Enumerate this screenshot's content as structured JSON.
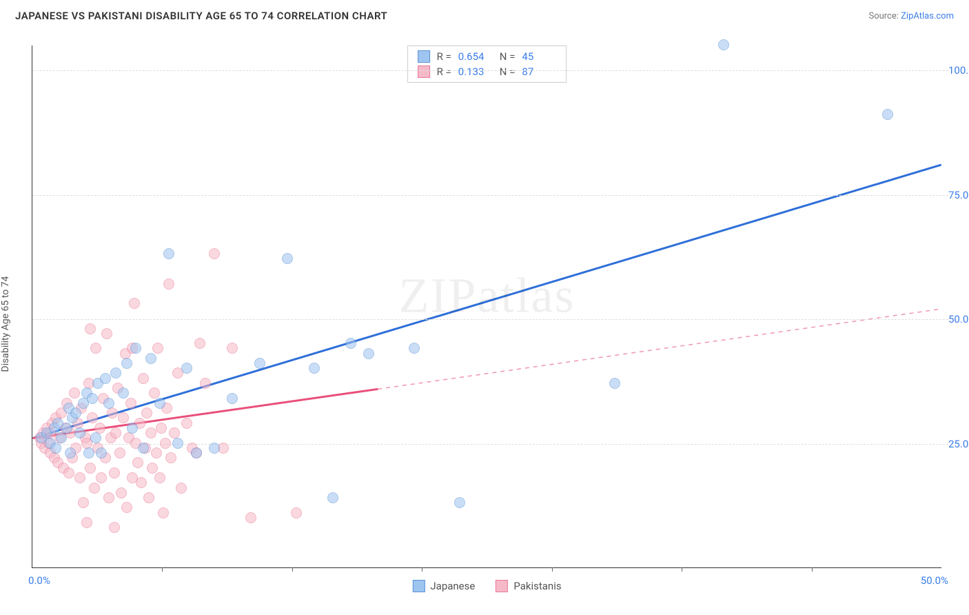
{
  "header": {
    "title": "JAPANESE VS PAKISTANI DISABILITY AGE 65 TO 74 CORRELATION CHART",
    "source_prefix": "Source: ",
    "source_link": "ZipAtlas.com"
  },
  "chart": {
    "type": "scatter",
    "ylabel": "Disability Age 65 to 74",
    "xlim": [
      0,
      50
    ],
    "ylim": [
      0,
      105
    ],
    "x_ticks": [
      0,
      50
    ],
    "x_tick_labels": [
      "0.0%",
      "50.0%"
    ],
    "x_minor_ticks": [
      7.14,
      14.28,
      21.42,
      28.56,
      35.7,
      42.84
    ],
    "y_ticks": [
      25,
      50,
      75,
      100
    ],
    "y_tick_labels": [
      "25.0%",
      "50.0%",
      "75.0%",
      "100.0%"
    ],
    "grid_color": "#dddddd",
    "axis_color": "#333333",
    "background_color": "#ffffff",
    "point_radius": 8,
    "point_opacity": 0.55,
    "watermark": "ZIPatlas",
    "series": [
      {
        "name": "Japanese",
        "fill_color": "#9ec4f0",
        "stroke_color": "#5b93d6",
        "line_color": "#2e6fd8",
        "r_value": "0.654",
        "n_value": "45",
        "trend": {
          "x1": 0,
          "y1": 26,
          "x2": 50,
          "y2": 81,
          "solid_until_x": 50
        },
        "points": [
          [
            0.5,
            26
          ],
          [
            0.8,
            27
          ],
          [
            1.0,
            25
          ],
          [
            1.2,
            28
          ],
          [
            1.3,
            24
          ],
          [
            1.4,
            29
          ],
          [
            1.6,
            26
          ],
          [
            1.9,
            28
          ],
          [
            2.0,
            32
          ],
          [
            2.1,
            23
          ],
          [
            2.2,
            30
          ],
          [
            2.4,
            31
          ],
          [
            2.6,
            27
          ],
          [
            2.8,
            33
          ],
          [
            3.0,
            35
          ],
          [
            3.1,
            23
          ],
          [
            3.3,
            34
          ],
          [
            3.5,
            26
          ],
          [
            3.6,
            37
          ],
          [
            3.8,
            23
          ],
          [
            4.0,
            38
          ],
          [
            4.2,
            33
          ],
          [
            4.6,
            39
          ],
          [
            5.0,
            35
          ],
          [
            5.2,
            41
          ],
          [
            5.5,
            28
          ],
          [
            5.7,
            44
          ],
          [
            6.1,
            24
          ],
          [
            6.5,
            42
          ],
          [
            7.0,
            33
          ],
          [
            7.5,
            63
          ],
          [
            8.0,
            25
          ],
          [
            8.5,
            40
          ],
          [
            9.0,
            23
          ],
          [
            10.0,
            24
          ],
          [
            11.0,
            34
          ],
          [
            12.5,
            41
          ],
          [
            14.0,
            62
          ],
          [
            15.5,
            40
          ],
          [
            17.5,
            45
          ],
          [
            18.5,
            43
          ],
          [
            21.0,
            44
          ],
          [
            32.0,
            37
          ],
          [
            38.0,
            105
          ],
          [
            47.0,
            91
          ],
          [
            16.5,
            14
          ],
          [
            23.5,
            13
          ]
        ]
      },
      {
        "name": "Pakistanis",
        "fill_color": "#f6b9c7",
        "stroke_color": "#ea7a98",
        "line_color": "#e94f7a",
        "r_value": "0.133",
        "n_value": "87",
        "trend": {
          "x1": 0,
          "y1": 26,
          "x2": 50,
          "y2": 52,
          "solid_until_x": 19
        },
        "points": [
          [
            0.4,
            26
          ],
          [
            0.5,
            25
          ],
          [
            0.6,
            27
          ],
          [
            0.7,
            24
          ],
          [
            0.8,
            28
          ],
          [
            0.9,
            25
          ],
          [
            1.0,
            27
          ],
          [
            1.0,
            23
          ],
          [
            1.1,
            29
          ],
          [
            1.2,
            22
          ],
          [
            1.3,
            30
          ],
          [
            1.4,
            21
          ],
          [
            1.5,
            26
          ],
          [
            1.6,
            31
          ],
          [
            1.7,
            20
          ],
          [
            1.8,
            28
          ],
          [
            1.9,
            33
          ],
          [
            2.0,
            19
          ],
          [
            2.1,
            27
          ],
          [
            2.2,
            22
          ],
          [
            2.3,
            35
          ],
          [
            2.4,
            24
          ],
          [
            2.5,
            29
          ],
          [
            2.6,
            18
          ],
          [
            2.7,
            32
          ],
          [
            2.8,
            13
          ],
          [
            2.9,
            26
          ],
          [
            3.0,
            25
          ],
          [
            3.1,
            37
          ],
          [
            3.2,
            20
          ],
          [
            3.3,
            30
          ],
          [
            3.4,
            16
          ],
          [
            3.5,
            44
          ],
          [
            3.6,
            24
          ],
          [
            3.7,
            28
          ],
          [
            3.8,
            18
          ],
          [
            3.9,
            34
          ],
          [
            4.0,
            22
          ],
          [
            4.1,
            47
          ],
          [
            4.2,
            14
          ],
          [
            4.3,
            26
          ],
          [
            4.4,
            31
          ],
          [
            4.5,
            19
          ],
          [
            4.6,
            27
          ],
          [
            4.7,
            36
          ],
          [
            4.8,
            23
          ],
          [
            4.9,
            15
          ],
          [
            5.0,
            30
          ],
          [
            5.1,
            43
          ],
          [
            5.2,
            12
          ],
          [
            5.3,
            26
          ],
          [
            5.4,
            33
          ],
          [
            5.5,
            18
          ],
          [
            5.6,
            53
          ],
          [
            5.7,
            25
          ],
          [
            5.8,
            21
          ],
          [
            5.9,
            29
          ],
          [
            6.0,
            17
          ],
          [
            6.1,
            38
          ],
          [
            6.2,
            24
          ],
          [
            6.3,
            31
          ],
          [
            6.4,
            14
          ],
          [
            6.5,
            27
          ],
          [
            6.6,
            20
          ],
          [
            6.7,
            35
          ],
          [
            6.8,
            23
          ],
          [
            6.9,
            44
          ],
          [
            7.0,
            18
          ],
          [
            7.1,
            28
          ],
          [
            7.2,
            11
          ],
          [
            7.3,
            25
          ],
          [
            7.4,
            32
          ],
          [
            7.5,
            57
          ],
          [
            7.6,
            22
          ],
          [
            7.8,
            27
          ],
          [
            8.0,
            39
          ],
          [
            8.2,
            16
          ],
          [
            8.5,
            29
          ],
          [
            8.8,
            24
          ],
          [
            9.0,
            23
          ],
          [
            9.2,
            45
          ],
          [
            9.5,
            37
          ],
          [
            10.0,
            63
          ],
          [
            10.5,
            24
          ],
          [
            11.0,
            44
          ],
          [
            12.0,
            10
          ],
          [
            14.5,
            11
          ],
          [
            4.5,
            8
          ],
          [
            3.0,
            9
          ],
          [
            3.2,
            48
          ],
          [
            5.5,
            44
          ]
        ]
      }
    ],
    "legend_bottom": [
      {
        "label": "Japanese",
        "fill": "#9ec4f0",
        "stroke": "#5b93d6"
      },
      {
        "label": "Pakistanis",
        "fill": "#f6b9c7",
        "stroke": "#ea7a98"
      }
    ]
  }
}
